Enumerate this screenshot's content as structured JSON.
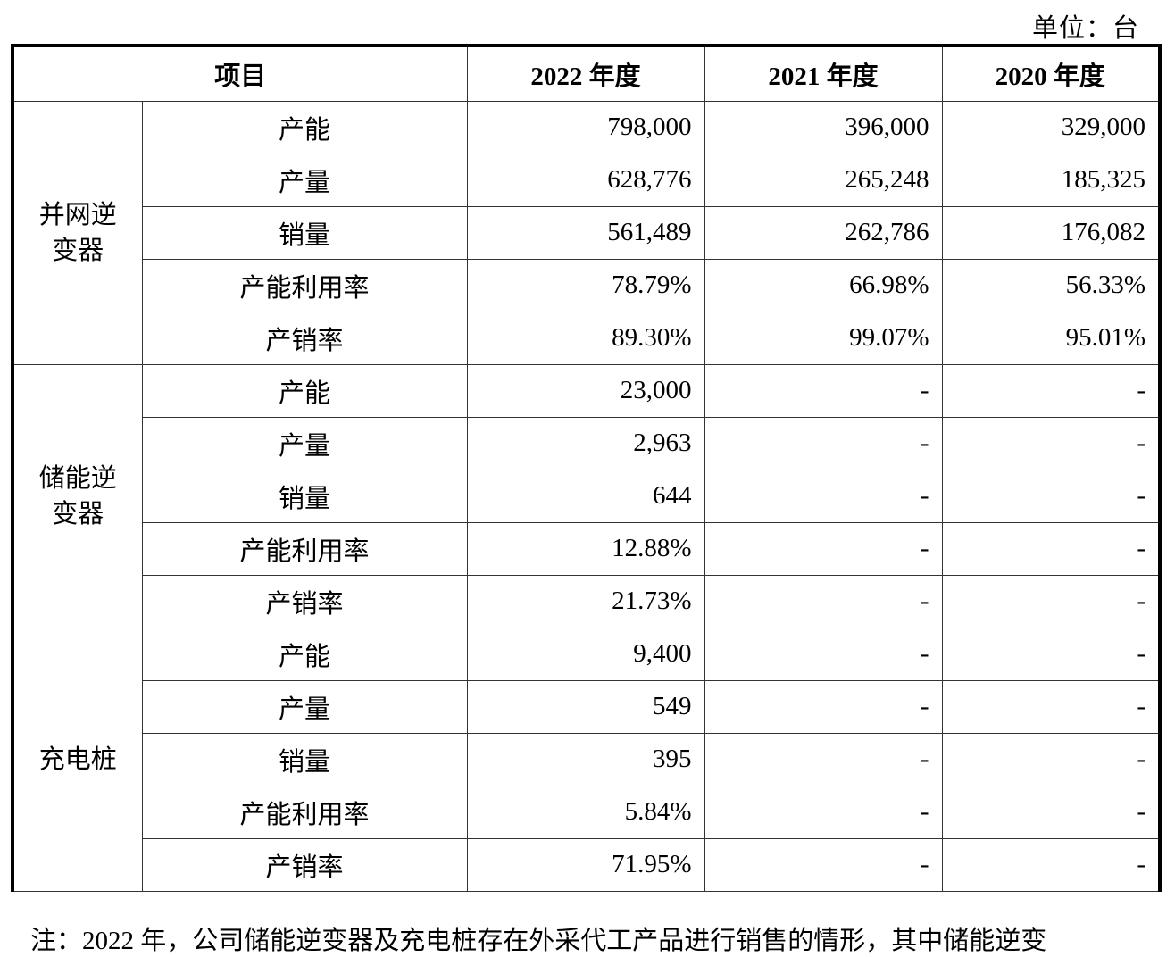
{
  "unit": "单位：台",
  "headers": {
    "item": "项目",
    "y2022": "2022 年度",
    "y2021": "2021 年度",
    "y2020": "2020 年度"
  },
  "groups": [
    {
      "name": "并网逆变器",
      "rows": [
        {
          "label": "产能",
          "v2022": "798,000",
          "v2021": "396,000",
          "v2020": "329,000"
        },
        {
          "label": "产量",
          "v2022": "628,776",
          "v2021": "265,248",
          "v2020": "185,325"
        },
        {
          "label": "销量",
          "v2022": "561,489",
          "v2021": "262,786",
          "v2020": "176,082"
        },
        {
          "label": "产能利用率",
          "v2022": "78.79%",
          "v2021": "66.98%",
          "v2020": "56.33%"
        },
        {
          "label": "产销率",
          "v2022": "89.30%",
          "v2021": "99.07%",
          "v2020": "95.01%"
        }
      ]
    },
    {
      "name": "储能逆变器",
      "rows": [
        {
          "label": "产能",
          "v2022": "23,000",
          "v2021": "-",
          "v2020": "-"
        },
        {
          "label": "产量",
          "v2022": "2,963",
          "v2021": "-",
          "v2020": "-"
        },
        {
          "label": "销量",
          "v2022": "644",
          "v2021": "-",
          "v2020": "-"
        },
        {
          "label": "产能利用率",
          "v2022": "12.88%",
          "v2021": "-",
          "v2020": "-"
        },
        {
          "label": "产销率",
          "v2022": "21.73%",
          "v2021": "-",
          "v2020": "-"
        }
      ]
    },
    {
      "name": "充电桩",
      "rows": [
        {
          "label": "产能",
          "v2022": "9,400",
          "v2021": "-",
          "v2020": "-"
        },
        {
          "label": "产量",
          "v2022": "549",
          "v2021": "-",
          "v2020": "-"
        },
        {
          "label": "销量",
          "v2022": "395",
          "v2021": "-",
          "v2020": "-"
        },
        {
          "label": "产能利用率",
          "v2022": "5.84%",
          "v2021": "-",
          "v2020": "-"
        },
        {
          "label": "产销率",
          "v2022": "71.95%",
          "v2021": "-",
          "v2020": "-"
        }
      ]
    }
  ],
  "note": "注：2022 年，公司储能逆变器及充电桩存在外采代工产品进行销售的情形，其中储能逆变"
}
